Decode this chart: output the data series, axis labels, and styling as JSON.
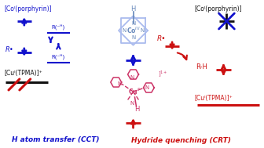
{
  "bg_color": "#ffffff",
  "blue": "#1111cc",
  "red": "#cc1111",
  "black": "#111111",
  "porp_color": "#aabbee",
  "cu_color": "#cc3366",
  "title_left": "H atom transfer (CCT)",
  "title_right": "Hydride quenching (CRT)",
  "label_co_porph_left": "[Coᴵ(porphyrin)]",
  "label_cu_tpma_left": "[Cuᴵ(TPMA)]⁺",
  "label_co_porph_right": "[Coᴵ(porphyrin)]",
  "label_cu_tpma_right": "[Cuᴵ(TPMA)]⁺",
  "label_r_dot_left": "R•",
  "label_r_dot_right": "R•",
  "label_rh": "R-H",
  "label_r_minus_h_top": "R(⁻ᴴ)",
  "label_r_minus_h_bot": "R(⁻ᴴ)"
}
